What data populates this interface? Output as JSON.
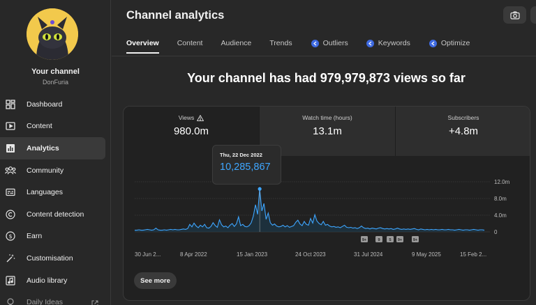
{
  "sidebar": {
    "channel_name": "Your channel",
    "channel_handle": "DonFuria",
    "items": [
      {
        "label": "Dashboard",
        "icon": "dashboard-icon"
      },
      {
        "label": "Content",
        "icon": "content-icon"
      },
      {
        "label": "Analytics",
        "icon": "analytics-icon",
        "active": true
      },
      {
        "label": "Community",
        "icon": "community-icon"
      },
      {
        "label": "Languages",
        "icon": "languages-icon"
      },
      {
        "label": "Content detection",
        "icon": "copyright-icon"
      },
      {
        "label": "Earn",
        "icon": "earn-icon"
      },
      {
        "label": "Customisation",
        "icon": "customisation-icon"
      },
      {
        "label": "Audio library",
        "icon": "audio-library-icon"
      },
      {
        "label": "Daily Ideas",
        "icon": "daily-ideas-icon",
        "external": true
      }
    ]
  },
  "header": {
    "title": "Channel analytics",
    "tabs": [
      {
        "label": "Overview",
        "active": true
      },
      {
        "label": "Content"
      },
      {
        "label": "Audience"
      },
      {
        "label": "Trends"
      },
      {
        "label": "Outliers",
        "icon": "spark-icon"
      },
      {
        "label": "Keywords",
        "icon": "spark-icon"
      },
      {
        "label": "Optimize",
        "icon": "spark-icon"
      }
    ]
  },
  "headline": "Your channel has had 979,979,873 views so far",
  "metrics": [
    {
      "label": "Views",
      "value": "980.0m",
      "warning": true
    },
    {
      "label": "Watch time (hours)",
      "value": "13.1m"
    },
    {
      "label": "Subscribers",
      "value": "+4.8m"
    }
  ],
  "tooltip": {
    "date": "Thu, 22 Dec 2022",
    "value": "10,285,867"
  },
  "chart_data": {
    "type": "line",
    "series": [
      {
        "name": "Views",
        "values": [
          0.4,
          0.4,
          0.5,
          0.4,
          0.4,
          0.5,
          0.6,
          0.5,
          0.4,
          0.5,
          0.9,
          0.5,
          0.4,
          0.4,
          0.5,
          0.4,
          0.5,
          0.6,
          0.5,
          0.6,
          0.5,
          0.5,
          0.6,
          0.7,
          0.6,
          0.8,
          1.8,
          1.2,
          2.1,
          1.4,
          1.0,
          1.6,
          1.2,
          1.8,
          1.0,
          0.9,
          1.3,
          2.2,
          1.5,
          1.1,
          2.9,
          1.7,
          1.2,
          1.4,
          1.0,
          1.6,
          2.0,
          1.3,
          1.9,
          3.6,
          1.5,
          1.8,
          1.3,
          1.2,
          1.5,
          2.2,
          3.8,
          6.5,
          4.2,
          10.3,
          5.0,
          6.8,
          3.0,
          4.5,
          2.2,
          1.6,
          1.9,
          1.4,
          1.2,
          1.3,
          1.6,
          1.2,
          1.5,
          1.1,
          1.3,
          1.5,
          2.3,
          2.8,
          1.9,
          1.5,
          2.5,
          1.8,
          1.6,
          3.2,
          2.1,
          4.1,
          2.6,
          2.0,
          1.7,
          2.5,
          1.6,
          1.8,
          1.4,
          1.2,
          1.3,
          1.1,
          1.2,
          1.0,
          1.3,
          1.6,
          1.1,
          1.0,
          1.1,
          0.9,
          1.0,
          0.8,
          1.0,
          1.4,
          1.0,
          0.8,
          0.9,
          0.7,
          0.9,
          0.8,
          0.7,
          0.9,
          1.0,
          0.8,
          0.7,
          0.8,
          0.7,
          0.8,
          0.6,
          0.7,
          0.9,
          0.7,
          0.6,
          0.7,
          0.6,
          0.7,
          0.6,
          0.7,
          0.8,
          0.6,
          0.5,
          0.7,
          0.6,
          0.5,
          0.6,
          0.5,
          0.6,
          0.5,
          0.6,
          0.5,
          0.5,
          0.6,
          0.5,
          0.5,
          0.6,
          0.5,
          0.5,
          0.4,
          0.5,
          0.6,
          0.5,
          0.4,
          0.5,
          0.5,
          0.4,
          0.5,
          0.6,
          0.5,
          0.4,
          0.5,
          0.5,
          0.4
        ]
      }
    ],
    "x_labels": [
      "30 Jun 2...",
      "8 Apr 2022",
      "15 Jan 2023",
      "24 Oct 2023",
      "31 Jul 2024",
      "9 May 2025",
      "15 Feb 2..."
    ],
    "y_ticks": [
      "12.0m",
      "8.0m",
      "4.0m",
      "0"
    ],
    "ylim": [
      0,
      12
    ],
    "markers": [
      "9+",
      "9",
      "5",
      "9+",
      "9+"
    ],
    "highlight": {
      "date": "Thu, 22 Dec 2022",
      "value": 10.285867
    }
  },
  "colors": {
    "line": "#3ea6ff",
    "area": "#1b3a4f",
    "accent": "#3e6ae1"
  },
  "see_more_label": "See more"
}
